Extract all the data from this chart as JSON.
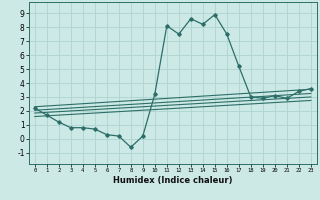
{
  "xlabel": "Humidex (Indice chaleur)",
  "ylabel": "",
  "bg_color": "#cce9e6",
  "grid_color": "#aed4d0",
  "line_color": "#2d6e68",
  "xlim": [
    -0.5,
    23.5
  ],
  "ylim": [
    -1.8,
    9.8
  ],
  "xticks": [
    0,
    1,
    2,
    3,
    4,
    5,
    6,
    7,
    8,
    9,
    10,
    11,
    12,
    13,
    14,
    15,
    16,
    17,
    18,
    19,
    20,
    21,
    22,
    23
  ],
  "yticks": [
    -1,
    0,
    1,
    2,
    3,
    4,
    5,
    6,
    7,
    8,
    9
  ],
  "main_x": [
    0,
    1,
    2,
    3,
    4,
    5,
    6,
    7,
    8,
    9,
    10,
    11,
    12,
    13,
    14,
    15,
    16,
    17,
    18,
    19,
    20,
    21,
    22,
    23
  ],
  "main_y": [
    2.2,
    1.7,
    1.2,
    0.8,
    0.8,
    0.7,
    0.3,
    0.2,
    -0.6,
    0.2,
    3.2,
    8.1,
    7.5,
    8.6,
    8.2,
    8.9,
    7.5,
    5.2,
    3.0,
    2.9,
    3.1,
    2.9,
    3.4,
    3.6
  ],
  "line1_x": [
    0,
    23
  ],
  "line1_y": [
    2.3,
    3.55
  ],
  "line2_x": [
    0,
    23
  ],
  "line2_y": [
    2.05,
    3.25
  ],
  "line3_x": [
    0,
    23
  ],
  "line3_y": [
    1.85,
    3.0
  ],
  "line4_x": [
    0,
    23
  ],
  "line4_y": [
    1.6,
    2.75
  ]
}
